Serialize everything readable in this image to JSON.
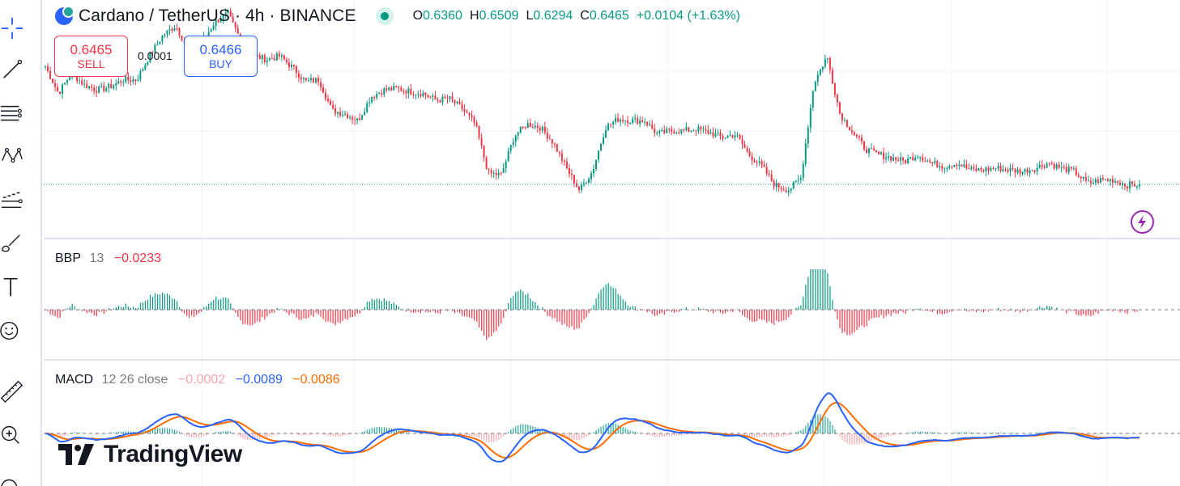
{
  "legend": {
    "symbol": "Cardano / TetherUS · 4h · BINANCE",
    "open_label": "O",
    "open": "0.6360",
    "high_label": "H",
    "high": "0.6509",
    "low_label": "L",
    "low": "0.6294",
    "close_label": "C",
    "close": "0.6465",
    "change": "+0.0104 (+1.63%)",
    "status_icon": "market-open-dot"
  },
  "trade": {
    "sell_price": "0.6465",
    "sell_label": "SELL",
    "spread": "0.0001",
    "buy_price": "0.6466",
    "buy_label": "BUY"
  },
  "bbp": {
    "name": "BBP",
    "params": "13",
    "value": "−0.0233"
  },
  "macd": {
    "name": "MACD",
    "params": "12 26 close",
    "hist": "−0.0002",
    "macd": "−0.0089",
    "signal": "−0.0086"
  },
  "branding": {
    "logo_text": "TradingView"
  },
  "toolbar": [
    "crosshair-icon",
    "trend-line-icon",
    "horizontal-lines-icon",
    "pattern-icon",
    "prediction-icon",
    "brush-icon",
    "text-icon",
    "emoji-icon",
    "ruler-icon",
    "zoom-in-icon",
    "magnet-icon"
  ],
  "colors": {
    "up": "#089981",
    "down": "#f23645",
    "macd_line": "#2962ff",
    "signal_line": "#ff6d00",
    "hist_neg_faded": "#f7a6ad",
    "grid": "#f0f3fa",
    "separator": "#e0e3eb"
  },
  "chart_data": [
    {
      "type": "candlestick",
      "pair": "ADA/USDT",
      "timeframe": "4h",
      "last_close": 0.6465,
      "price_path_approx": [
        0.716,
        0.7,
        0.712,
        0.705,
        0.702,
        0.704,
        0.708,
        0.708,
        0.722,
        0.734,
        0.74,
        0.725,
        0.73,
        0.742,
        0.747,
        0.731,
        0.722,
        0.72,
        0.722,
        0.715,
        0.707,
        0.708,
        0.69,
        0.688,
        0.684,
        0.698,
        0.702,
        0.703,
        0.701,
        0.7,
        0.696,
        0.697,
        0.691,
        0.682,
        0.653,
        0.652,
        0.675,
        0.682,
        0.68,
        0.671,
        0.656,
        0.643,
        0.654,
        0.68,
        0.685,
        0.684,
        0.684,
        0.676,
        0.678,
        0.678,
        0.679,
        0.677,
        0.674,
        0.676,
        0.664,
        0.657,
        0.646,
        0.643,
        0.65,
        0.706,
        0.722,
        0.688,
        0.677,
        0.667,
        0.664,
        0.662,
        0.66,
        0.664,
        0.659,
        0.657,
        0.659,
        0.655,
        0.655,
        0.656,
        0.655,
        0.654,
        0.656,
        0.659,
        0.656,
        0.654,
        0.647,
        0.649,
        0.649,
        0.646,
        0.6465
      ]
    },
    {
      "type": "bar",
      "indicator": "BBP 13",
      "last_value": -0.0233
    },
    {
      "type": "line",
      "indicator": "MACD 12 26 close",
      "series": [
        {
          "name": "histogram",
          "last_value": -0.0002
        },
        {
          "name": "macd",
          "last_value": -0.0089
        },
        {
          "name": "signal",
          "last_value": -0.0086
        }
      ]
    }
  ]
}
